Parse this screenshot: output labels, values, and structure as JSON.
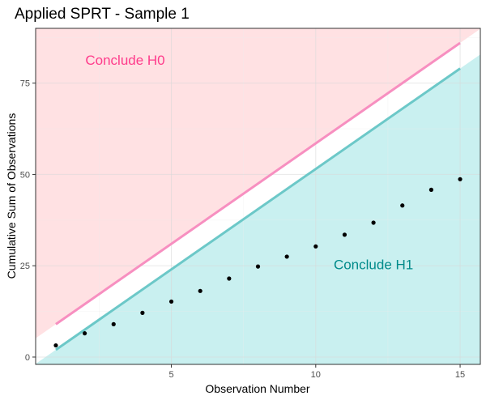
{
  "chart_data": {
    "type": "line",
    "title": "Applied SPRT - Sample 1",
    "xlabel": "Observation Number",
    "ylabel": "Cumulative Sum of Observations",
    "x_ticks": [
      5,
      10,
      15
    ],
    "y_ticks": [
      0,
      25,
      50,
      75
    ],
    "x_tick_labels": [
      "5",
      "10",
      "15"
    ],
    "y_tick_labels": [
      "0",
      "25",
      "50",
      "75"
    ],
    "xlim": [
      0.3,
      15.7
    ],
    "ylim": [
      -2,
      90
    ],
    "grid": true,
    "legend": "none",
    "regions": [
      {
        "label": "Conclude H0",
        "color": "#ff3b8b",
        "fill": "#ffe1e3",
        "label_x": 3.4,
        "label_y": 80
      },
      {
        "label": "Conclude H1",
        "color": "#008b8b",
        "fill": "#c9f0f0",
        "label_x": 12.0,
        "label_y": 24
      }
    ],
    "series": [
      {
        "role": "upper-boundary",
        "color": "#f78fc0",
        "x": [
          1,
          15
        ],
        "y": [
          9,
          86
        ]
      },
      {
        "role": "lower-boundary",
        "color": "#6cc8c8",
        "x": [
          1,
          15
        ],
        "y": [
          2,
          79
        ]
      },
      {
        "role": "cumulative-sum",
        "color": "#000000",
        "x": [
          1,
          2,
          3,
          4,
          5,
          6,
          7,
          8,
          9,
          10,
          11,
          12,
          13,
          14,
          15
        ],
        "y": [
          3.2,
          6.5,
          9.0,
          12.1,
          15.2,
          18.1,
          21.5,
          24.8,
          27.5,
          30.3,
          33.5,
          36.8,
          41.5,
          45.8,
          48.7
        ]
      }
    ]
  }
}
